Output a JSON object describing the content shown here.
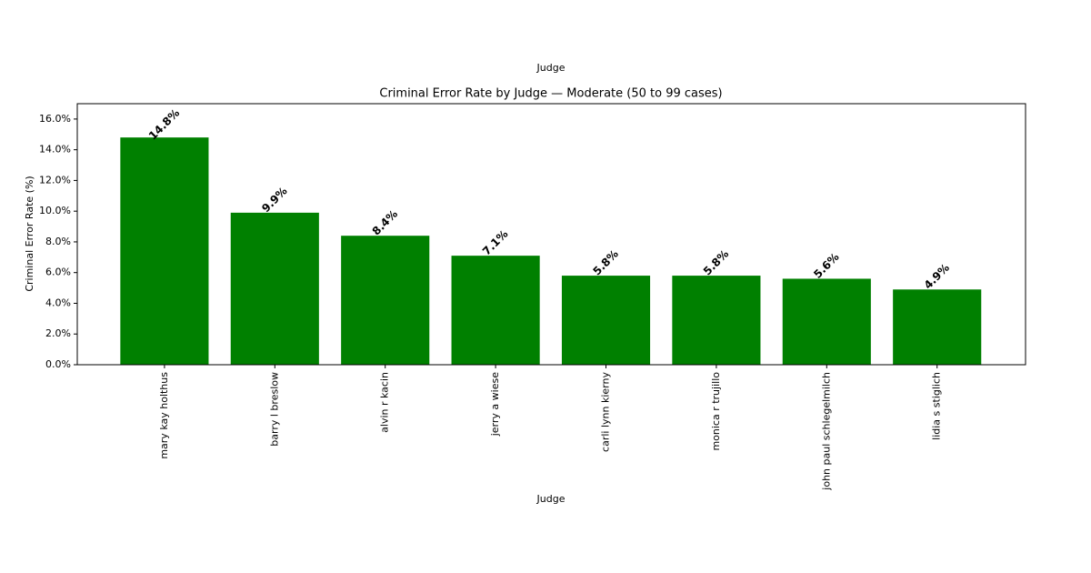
{
  "chart_data": {
    "type": "bar",
    "title": "Criminal Error Rate by Judge — Moderate (50 to 99 cases)",
    "annotations": [
      "Judge"
    ],
    "x_label": "Judge",
    "y_label": "Criminal Error Rate (%)",
    "categories": [
      "mary kay holthus",
      "barry l breslow",
      "alvin r kacin",
      "jerry a wiese",
      "carli lynn kierny",
      "monica r trujillo",
      "john paul schlegelmilch",
      "lidia s stiglich"
    ],
    "values": [
      14.8,
      9.9,
      8.4,
      7.1,
      5.8,
      5.8,
      5.6,
      4.9
    ],
    "value_labels": [
      "14.8%",
      "9.9%",
      "8.4%",
      "7.1%",
      "5.8%",
      "5.8%",
      "5.6%",
      "4.9%"
    ],
    "color": "#008000",
    "ylim": [
      0,
      17
    ],
    "yticks": [
      {
        "value": 0,
        "label": "0.0%"
      },
      {
        "value": 2,
        "label": "2.0%"
      },
      {
        "value": 4,
        "label": "4.0%"
      },
      {
        "value": 6,
        "label": "6.0%"
      },
      {
        "value": 8,
        "label": "8.0%"
      },
      {
        "value": 10,
        "label": "10.0%"
      },
      {
        "value": 12,
        "label": "12.0%"
      },
      {
        "value": 14,
        "label": "14.0%"
      },
      {
        "value": 16,
        "label": "16.0%"
      }
    ],
    "grid": false
  }
}
